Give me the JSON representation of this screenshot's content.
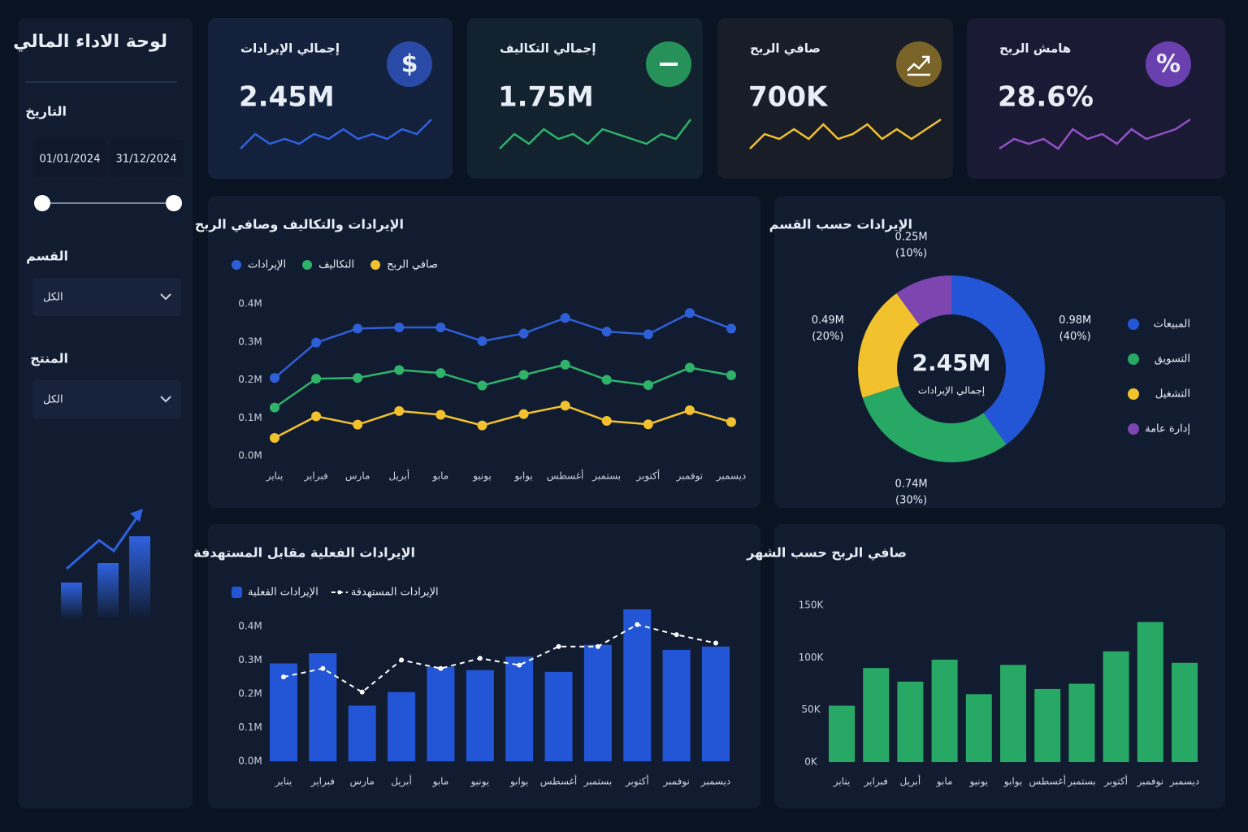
{
  "sidebar": {
    "title": "لوحة الاداء المالي",
    "date_label": "التاريخ",
    "date_from": "01/01/2024",
    "date_to": "31/12/2024",
    "department_label": "القسم",
    "department_value": "الكل",
    "product_label": "المنتج",
    "product_value": "الكل"
  },
  "kpis": [
    {
      "label": "إجمالي الإيرادات",
      "value": "2.45M",
      "icon": "$",
      "color": "#2f62e0",
      "icon_color": "#2a4aa8",
      "spark": [
        2,
        5,
        3,
        4,
        3,
        5,
        4,
        6,
        4,
        5,
        4,
        6,
        5,
        8
      ]
    },
    {
      "label": "إجمالي التكاليف",
      "value": "1.75M",
      "color": "#2fb36a",
      "icon_color": "#27915a",
      "spark": [
        2,
        5,
        3,
        6,
        4,
        5,
        3,
        6,
        5,
        4,
        3,
        5,
        4,
        8
      ]
    },
    {
      "label": "صافي الربح",
      "value": "700K",
      "color": "#f2c12e",
      "icon_color": "#7a6328",
      "spark": [
        2,
        5,
        4,
        6,
        4,
        7,
        4,
        5,
        7,
        4,
        6,
        4,
        6,
        8
      ]
    },
    {
      "label": "هامش الربح",
      "value": "28.6%",
      "icon": "%",
      "color": "#9450c8",
      "icon_color": "#6a3fae",
      "spark": [
        2,
        4,
        3,
        4,
        2,
        6,
        4,
        5,
        3,
        6,
        4,
        5,
        6,
        8
      ]
    }
  ],
  "chart_data": [
    {
      "type": "line",
      "title": "الإيرادات والتكاليف وصافي الربح",
      "categories": [
        "يناير",
        "فبراير",
        "مارس",
        "أبريل",
        "مابو",
        "يونيو",
        "يوابو",
        "أغسطس",
        "بستمبر",
        "أكتوبر",
        "توفمبر",
        "ديسمبر"
      ],
      "series": [
        {
          "name": "الإيرادات",
          "color": "#2f5fd8",
          "values": [
            0.205,
            0.298,
            0.335,
            0.338,
            0.338,
            0.302,
            0.322,
            0.363,
            0.327,
            0.32,
            0.376,
            0.335
          ]
        },
        {
          "name": "التكاليف",
          "color": "#2fb36a",
          "values": [
            0.127,
            0.203,
            0.205,
            0.226,
            0.218,
            0.185,
            0.213,
            0.24,
            0.2,
            0.186,
            0.232,
            0.212
          ]
        },
        {
          "name": "صافي الربح",
          "color": "#f2c12e",
          "values": [
            0.047,
            0.104,
            0.082,
            0.118,
            0.108,
            0.08,
            0.11,
            0.132,
            0.092,
            0.083,
            0.12,
            0.089
          ]
        }
      ],
      "ylim": [
        0,
        0.4
      ],
      "yticks": [
        {
          "value": 0,
          "label": "0.0M"
        },
        {
          "value": 0.1,
          "label": "0.1M"
        },
        {
          "value": 0.2,
          "label": "0.2M"
        },
        {
          "value": 0.3,
          "label": "0.3M"
        },
        {
          "value": 0.4,
          "label": "0.4M"
        }
      ]
    },
    {
      "type": "donut",
      "title": "الإيرادات حسب القسم",
      "categories": [
        "المبيعات",
        "التسويق",
        "التشغيل",
        "إدارة عامة"
      ],
      "colors": [
        "#2356d6",
        "#27a865",
        "#f2c12e",
        "#7c45b0"
      ],
      "values": [
        0.98,
        0.74,
        0.49,
        0.25
      ],
      "value_labels": [
        "0.98M",
        "0.74M",
        "0.49M",
        "0.25M"
      ],
      "percents": [
        40,
        30,
        20,
        10
      ],
      "percent_labels": [
        "(40%)",
        "(30%)",
        "(20%)",
        "(10%)"
      ],
      "center_value": "2.45M",
      "center_label": "إجمالي الإيرادات"
    },
    {
      "type": "bar_line",
      "title": "الإيرادات الفعلية مقابل المستهدفة",
      "categories": [
        "يناير",
        "فبراير",
        "مارس",
        "أبريل",
        "مابو",
        "يونيو",
        "يوابو",
        "أغسطس",
        "بستمبر",
        "أكتوبر",
        "نوفمبر",
        "ديسمبر"
      ],
      "series": [
        {
          "name": "الإيرادات الفعلية",
          "color": "#2356d6",
          "values": [
            0.29,
            0.32,
            0.165,
            0.205,
            0.28,
            0.27,
            0.31,
            0.265,
            0.345,
            0.45,
            0.33,
            0.34
          ]
        },
        {
          "name": "الإيرادات المستهدفة",
          "color": "#ffffff",
          "values": [
            0.25,
            0.275,
            0.205,
            0.3,
            0.275,
            0.305,
            0.285,
            0.34,
            0.34,
            0.405,
            0.375,
            0.35
          ]
        }
      ],
      "ylim": [
        0,
        0.45
      ],
      "yticks": [
        {
          "value": 0,
          "label": "0.0M"
        },
        {
          "value": 0.1,
          "label": "0.1M"
        },
        {
          "value": 0.2,
          "label": "0.2M"
        },
        {
          "value": 0.3,
          "label": "0.3M"
        },
        {
          "value": 0.4,
          "label": "0.4M"
        }
      ]
    },
    {
      "type": "bar",
      "title": "صافي الربح حسب الشهر",
      "categories": [
        "يناير",
        "فبراير",
        "أبريل",
        "مابو",
        "يونيو",
        "يوابو",
        "أغسطس",
        "بستمبر",
        "أكتوبر",
        "نوفمبر",
        "ديسمبر"
      ],
      "values": [
        54000,
        90000,
        77000,
        98000,
        65000,
        93000,
        70000,
        75000,
        106000,
        134000,
        95000
      ],
      "color": "#27a865",
      "ylim": [
        0,
        150000
      ],
      "yticks": [
        {
          "value": 0,
          "label": "0K"
        },
        {
          "value": 50000,
          "label": "50K"
        },
        {
          "value": 100000,
          "label": "100K"
        },
        {
          "value": 150000,
          "label": "150K"
        }
      ]
    }
  ]
}
